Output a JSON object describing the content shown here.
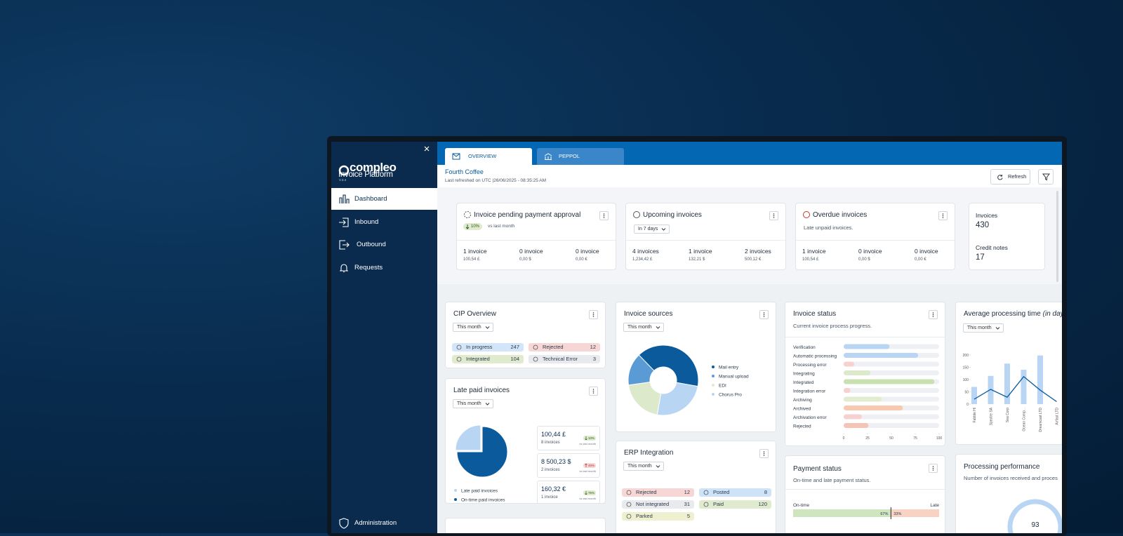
{
  "sidebar": {
    "brand": "compleo",
    "product": "Invoice Platform",
    "version": "V.3.4",
    "nav": [
      "Dashboard",
      "Inbound",
      "Outbound",
      "Requests",
      "Administration"
    ]
  },
  "tabs": [
    "OVERVIEW",
    "PEPPOL"
  ],
  "header": {
    "company": "Fourth Coffee",
    "refreshed": "Last refreshed on UTC |26/06/2025 - 08:35:25 AM",
    "refresh": "Refresh"
  },
  "kpis": {
    "pending": {
      "title": "Invoice pending payment approval",
      "change": "10%",
      "change_note": "vs last month",
      "items": [
        {
          "count": "1 invoice",
          "amount": "100,54 £"
        },
        {
          "count": "0 invoice",
          "amount": "0,00 $"
        },
        {
          "count": "0 invoice",
          "amount": "0,00 €"
        }
      ]
    },
    "upcoming": {
      "title": "Upcoming invoices",
      "filter": "In 7 days",
      "items": [
        {
          "count": "4 invoices",
          "amount": "1,234,42 £"
        },
        {
          "count": "1 invoice",
          "amount": "132,21 $"
        },
        {
          "count": "2 invoices",
          "amount": "500,12 €"
        }
      ]
    },
    "overdue": {
      "title": "Overdue invoices",
      "subtitle": "Late unpaid invoices.",
      "items": [
        {
          "count": "1 invoice",
          "amount": "100,54 £"
        },
        {
          "count": "0 invoice",
          "amount": "0,00 $"
        },
        {
          "count": "0 invoice",
          "amount": "0,00 €"
        }
      ]
    },
    "totals": [
      {
        "label": "Invoices",
        "value": 430
      },
      {
        "label": "Credit notes",
        "value": 17
      }
    ]
  },
  "cip": {
    "title": "CIP Overview",
    "filter": "This month",
    "statuses": [
      {
        "label": "In progress",
        "value": 247,
        "color": "#d3e6f9"
      },
      {
        "label": "Rejected",
        "value": 12,
        "color": "#f7d6d6"
      },
      {
        "label": "Integrated",
        "value": 104,
        "color": "#dfeacf"
      },
      {
        "label": "Technical Error",
        "value": 3,
        "color": "#e8eaed"
      }
    ]
  },
  "late_paid": {
    "title": "Late paid invoices",
    "filter": "This month",
    "chart": {
      "type": "pie",
      "categories": [
        "Late paid invoices",
        "On-time paid invoices"
      ],
      "values": [
        25,
        75
      ],
      "colors": [
        "#b8d5f3",
        "#0a5a9c"
      ]
    },
    "cards": [
      {
        "amount": "100,44 £",
        "count": "8 invoices",
        "change": "10%",
        "trend": "down",
        "note": "vs last month"
      },
      {
        "amount": "8 500,23 $",
        "count": "2 invoices",
        "change": "45%",
        "trend": "up",
        "note": "vs last month"
      },
      {
        "amount": "160,32 €",
        "count": "1 invoice",
        "change": "75%",
        "trend": "down",
        "note": "vs last month"
      }
    ]
  },
  "sources": {
    "title": "Invoice sources",
    "filter": "This month",
    "chart": {
      "type": "donut",
      "categories": [
        "Mail entry",
        "Manual upload",
        "EDI",
        "Chorus Pro"
      ],
      "values": [
        40,
        15,
        20,
        25
      ],
      "colors": [
        "#0a5a9c",
        "#5b9bd5",
        "#dce9cb",
        "#b8d5f3"
      ]
    }
  },
  "erp": {
    "title": "ERP Integration",
    "filter": "This month",
    "statuses": [
      {
        "label": "Rejected",
        "value": 12,
        "color": "#f7d6d6"
      },
      {
        "label": "Posted",
        "value": 8,
        "color": "#cfe3f8"
      },
      {
        "label": "Not integrated",
        "value": 31,
        "color": "#e8eaed"
      },
      {
        "label": "Paid",
        "value": 120,
        "color": "#dfeacf"
      },
      {
        "label": "Parked",
        "value": 5,
        "color": "#eef0cf"
      }
    ]
  },
  "status": {
    "title": "Invoice status",
    "subtitle": "Current invoice process progress.",
    "chart": {
      "type": "bar",
      "orientation": "horizontal",
      "categories": [
        "Verification",
        "Automatic processing",
        "Processing error",
        "Integrating",
        "Integrated",
        "Integration error",
        "Archiving",
        "Archived",
        "Archivation error",
        "Rejected"
      ],
      "values": [
        48,
        78,
        11,
        28,
        95,
        7,
        40,
        62,
        19,
        26
      ],
      "colors": [
        "#b8d5f3",
        "#b8d5f3",
        "#f7d0d0",
        "#dce9cb",
        "#c9e0b0",
        "#f7d0d0",
        "#e2edcf",
        "#f6c9b0",
        "#f7d0d0",
        "#f6c4b6"
      ],
      "xlim": [
        0,
        100
      ],
      "xticks": [
        0,
        25,
        50,
        75,
        100
      ]
    }
  },
  "avg": {
    "title": "Average processing time",
    "title_note": "(in days)",
    "filter": "This month",
    "chart": {
      "type": "combo",
      "categories": [
        "Fabble Hi",
        "Spectre SA",
        "Sea Corp",
        "Ocean Comp...",
        "Dreamcast LTD",
        "Airfast LTD"
      ],
      "series": [
        {
          "type": "bar",
          "color": "#b8d5f3",
          "values": [
            70,
            115,
            165,
            140,
            198,
            null
          ]
        },
        {
          "type": "line",
          "color": "#0a5a9c",
          "values": [
            20,
            60,
            28,
            112,
            57,
            10
          ]
        }
      ],
      "ylim": [
        0,
        200
      ],
      "yticks": [
        0,
        50,
        100,
        150,
        200
      ]
    }
  },
  "payment": {
    "title": "Payment status",
    "subtitle": "On-time and late payment status.",
    "chart": {
      "type": "bar",
      "stacked": true,
      "orientation": "horizontal",
      "categories": [
        "On-time",
        "Late"
      ],
      "values": [
        67,
        33
      ],
      "value_labels": [
        "67%",
        "33%"
      ],
      "colors": [
        "#cfe5bd",
        "#f8d3c4"
      ]
    }
  },
  "performance": {
    "title": "Processing performance",
    "subtitle": "Number of invoices received and proces",
    "gauge_label": "93"
  }
}
